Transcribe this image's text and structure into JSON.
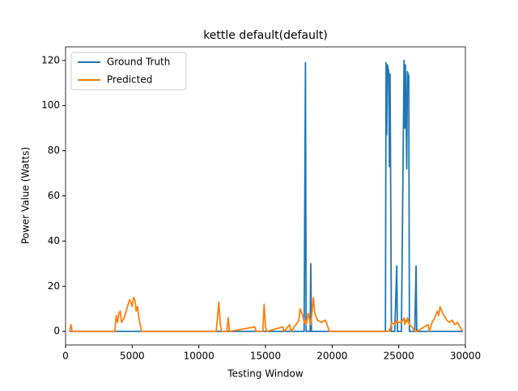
{
  "chart_data": {
    "type": "line",
    "title": "kettle default(default)",
    "x_label": "Testing Window",
    "y_label": "Power Value (Watts)",
    "x": [
      300,
      400,
      500,
      3700,
      3800,
      3900,
      4000,
      4100,
      4200,
      4400,
      4600,
      4800,
      4900,
      5000,
      5100,
      5200,
      5300,
      5400,
      5500,
      5700,
      11300,
      11400,
      11500,
      11600,
      11700,
      12100,
      12200,
      12300,
      14200,
      14300,
      14800,
      14900,
      15000,
      15100,
      16300,
      16400,
      16800,
      16900,
      17300,
      17500,
      17600,
      17800,
      17900,
      18000,
      18050,
      18200,
      18350,
      18400,
      18450,
      18600,
      18700,
      18900,
      19200,
      19500,
      19800,
      24000,
      24050,
      24100,
      24150,
      24250,
      24300,
      24350,
      24450,
      24700,
      24850,
      24900,
      25200,
      25400,
      25450,
      25500,
      25600,
      25650,
      25750,
      25800,
      26000,
      26200,
      26300,
      26350,
      27200,
      27300,
      27500,
      27700,
      27900,
      28000,
      28100,
      28300,
      28600,
      28800,
      29000,
      29200,
      29400,
      29600,
      29800
    ],
    "series": [
      {
        "name": "Ground Truth",
        "color": "#1f77b4",
        "values": [
          0,
          0,
          0,
          0,
          0,
          0,
          0,
          0,
          0,
          0,
          0,
          0,
          0,
          0,
          0,
          0,
          0,
          0,
          0,
          0,
          0,
          0,
          0,
          0,
          0,
          0,
          0,
          0,
          0,
          0,
          0,
          0,
          0,
          0,
          0,
          0,
          0,
          0,
          0,
          0,
          0,
          0,
          0,
          119,
          0,
          0,
          0,
          30,
          0,
          0,
          0,
          0,
          0,
          0,
          0,
          0,
          119,
          87,
          118,
          115,
          73,
          114,
          0,
          0,
          29,
          0,
          0,
          120,
          90,
          118,
          72,
          115,
          113,
          0,
          0,
          0,
          29,
          0,
          0,
          0,
          0,
          0,
          0,
          0,
          0,
          0,
          0,
          0,
          0,
          0,
          0,
          0,
          0
        ]
      },
      {
        "name": "Predicted",
        "color": "#ff7f0e",
        "values": [
          0,
          3,
          0,
          0,
          7,
          4,
          8,
          9,
          4,
          6,
          10,
          14,
          13,
          11,
          15,
          14,
          9,
          11,
          6,
          0,
          0,
          6,
          13,
          4,
          0,
          0,
          6,
          0,
          2,
          0,
          0,
          12,
          2,
          0,
          2,
          0,
          3,
          0,
          3,
          5,
          10,
          7,
          4,
          5,
          3,
          8,
          4,
          3,
          6,
          15,
          8,
          5,
          4,
          5,
          0,
          0,
          0,
          0,
          0,
          0,
          1,
          0,
          4,
          3,
          5,
          4,
          4,
          6,
          3,
          5,
          4,
          6,
          4,
          3,
          2,
          0,
          0,
          0,
          3,
          0,
          4,
          6,
          9,
          7,
          11,
          8,
          5,
          4,
          5,
          3,
          4,
          2,
          0
        ]
      }
    ],
    "xlim": [
      0,
      30000
    ],
    "ylim": [
      -6,
      126
    ],
    "xticks": [
      0,
      5000,
      10000,
      15000,
      20000,
      25000,
      30000
    ],
    "yticks": [
      0,
      20,
      40,
      60,
      80,
      100,
      120
    ],
    "legend": "upper-left"
  }
}
